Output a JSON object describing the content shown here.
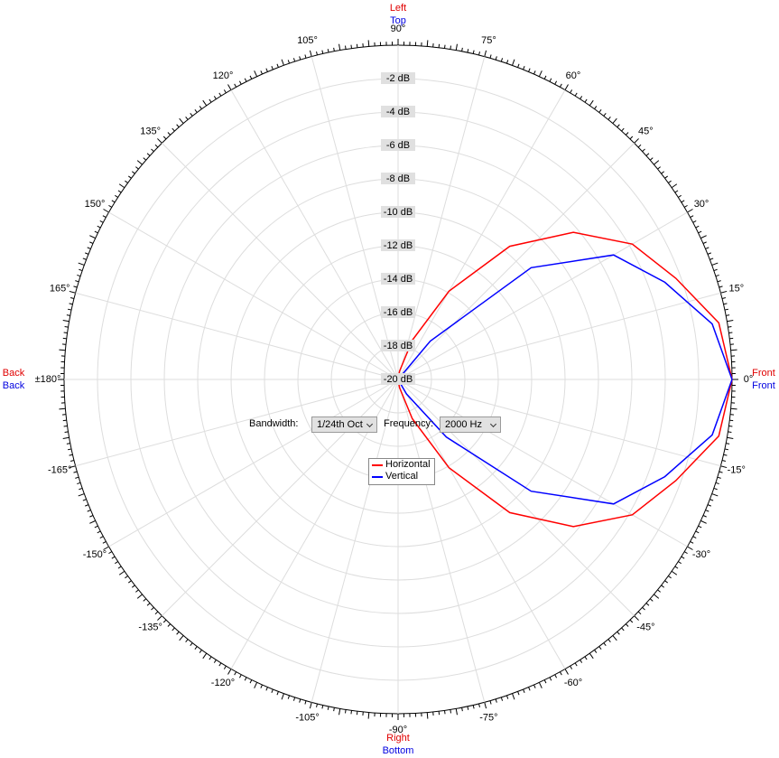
{
  "chart_data": {
    "type": "polar",
    "direction_labels": [
      {
        "text": "Left",
        "color": "#e00000",
        "side": "top"
      },
      {
        "text": "Top",
        "color": "#0000e0",
        "side": "top"
      },
      {
        "text": "Right",
        "color": "#e00000",
        "side": "bottom"
      },
      {
        "text": "Bottom",
        "color": "#0000e0",
        "side": "bottom"
      },
      {
        "text": "Back",
        "color": "#e00000",
        "side": "left"
      },
      {
        "text": "Back",
        "color": "#0000e0",
        "side": "left"
      },
      {
        "text": "Front",
        "color": "#e00000",
        "side": "right"
      },
      {
        "text": "Front",
        "color": "#0000e0",
        "side": "right"
      }
    ],
    "rlim": [
      -20,
      0
    ],
    "rticks": [
      {
        "value": -20,
        "label": "-20 dB"
      },
      {
        "value": -18,
        "label": "-18 dB"
      },
      {
        "value": -16,
        "label": "-16 dB"
      },
      {
        "value": -14,
        "label": "-14 dB"
      },
      {
        "value": -12,
        "label": "-12 dB"
      },
      {
        "value": -10,
        "label": "-10 dB"
      },
      {
        "value": -8,
        "label": "-8 dB"
      },
      {
        "value": -6,
        "label": "-6 dB"
      },
      {
        "value": -4,
        "label": "-4 dB"
      },
      {
        "value": -2,
        "label": "-2 dB"
      }
    ],
    "thetaticks": [
      {
        "value": 0,
        "label": "0°"
      },
      {
        "value": 15,
        "label": "15°"
      },
      {
        "value": 30,
        "label": "30°"
      },
      {
        "value": 45,
        "label": "45°"
      },
      {
        "value": 60,
        "label": "60°"
      },
      {
        "value": 75,
        "label": "75°"
      },
      {
        "value": 90,
        "label": "90°"
      },
      {
        "value": 105,
        "label": "105°"
      },
      {
        "value": 120,
        "label": "120°"
      },
      {
        "value": 135,
        "label": "135°"
      },
      {
        "value": 150,
        "label": "150°"
      },
      {
        "value": 165,
        "label": "165°"
      },
      {
        "value": 180,
        "label": "±180°"
      },
      {
        "value": -165,
        "label": "-165°"
      },
      {
        "value": -150,
        "label": "-150°"
      },
      {
        "value": -135,
        "label": "-135°"
      },
      {
        "value": -120,
        "label": "-120°"
      },
      {
        "value": -105,
        "label": "-105°"
      },
      {
        "value": -90,
        "label": "-90°"
      },
      {
        "value": -75,
        "label": "-75°"
      },
      {
        "value": -60,
        "label": "-60°"
      },
      {
        "value": -45,
        "label": "-45°"
      },
      {
        "value": -30,
        "label": "-30°"
      },
      {
        "value": -15,
        "label": "-15°"
      }
    ],
    "grid": true,
    "theta": [
      -90,
      -80,
      -70,
      -60,
      -50,
      -40,
      -30,
      -20,
      -10,
      0,
      10,
      20,
      30,
      40,
      50,
      60,
      70,
      80,
      90
    ],
    "series": [
      {
        "name": "Horizontal",
        "color": "#ff0000",
        "values": [
          -20,
          -19.5,
          -17.5,
          -13.9,
          -9.6,
          -6.3,
          -3.8,
          -2.3,
          -0.5,
          0,
          -0.5,
          -2.3,
          -3.8,
          -6.3,
          -9.6,
          -13.9,
          -17.5,
          -19.5,
          -20
        ]
      },
      {
        "name": "Vertical",
        "color": "#0000ff",
        "values": [
          -20,
          -20,
          -20,
          -19,
          -15.5,
          -9.6,
          -5.1,
          -3,
          -0.9,
          0,
          -0.9,
          -3,
          -5.1,
          -9.6,
          -17,
          -20,
          -20,
          -20,
          -20
        ]
      }
    ]
  },
  "controls": {
    "bandwidth_label": "Bandwidth:",
    "bandwidth_value": "1/24th Oct",
    "frequency_label": "Frequency:",
    "frequency_value": "2000 Hz"
  }
}
